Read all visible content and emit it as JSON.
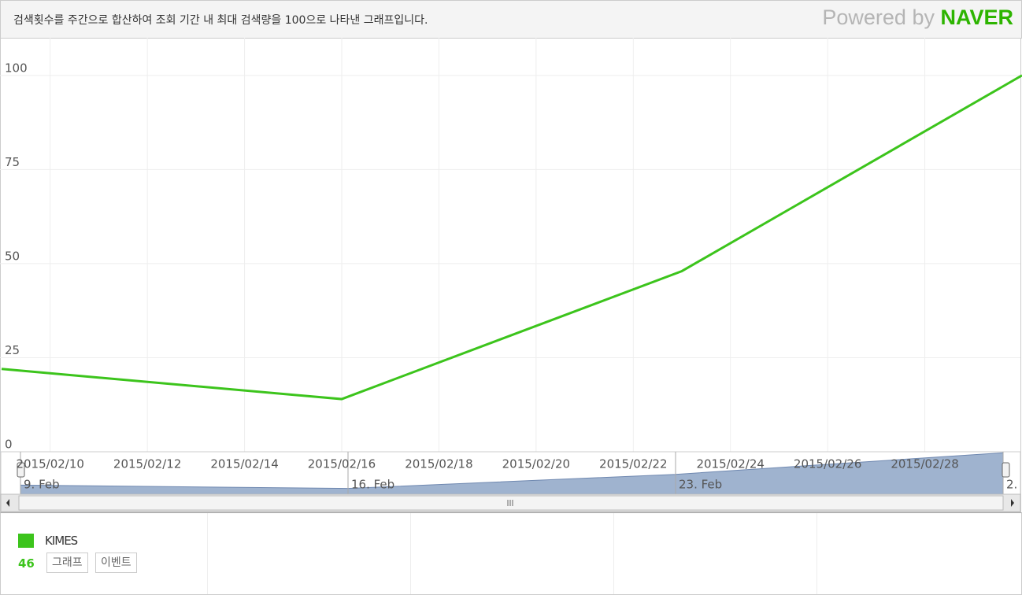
{
  "header": {
    "note": "검색횟수를 주간으로 합산하여 조회 기간 내 최대 검색량을 100으로 나타낸 그래프입니다.",
    "powered_by": "Powered by",
    "brand": "NAVER"
  },
  "chart_data": {
    "type": "line",
    "x": [
      "2015/02/09",
      "2015/02/16",
      "2015/02/23",
      "2015/03/02"
    ],
    "series": [
      {
        "name": "KIMES",
        "color": "#3cc41c",
        "values": [
          22,
          14,
          48,
          100
        ],
        "legend_value": 46
      }
    ],
    "xlim": [
      "2015/02/09",
      "2015/03/02"
    ],
    "xticks": [
      "2015/02/10",
      "2015/02/12",
      "2015/02/14",
      "2015/02/16",
      "2015/02/18",
      "2015/02/20",
      "2015/02/22",
      "2015/02/24",
      "2015/02/26",
      "2015/02/28"
    ],
    "ylim": [
      0,
      110
    ],
    "yticks": [
      0,
      25,
      50,
      75,
      100
    ],
    "grid": true,
    "navigator": {
      "labels": [
        "9. Feb",
        "16. Feb",
        "23. Feb",
        "2."
      ],
      "color": "#9fb3cf"
    }
  },
  "buttons": [
    "그래프",
    "이벤트"
  ]
}
